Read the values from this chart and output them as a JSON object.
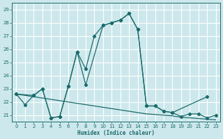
{
  "xlabel": "Humidex (Indice chaleur)",
  "bg_color": "#cde8ec",
  "grid_color": "#b0d8dc",
  "line_color": "#1a6b6b",
  "xlim": [
    -0.5,
    23.5
  ],
  "ylim": [
    20.5,
    29.5
  ],
  "xticks": [
    0,
    1,
    2,
    3,
    4,
    5,
    6,
    7,
    8,
    9,
    10,
    11,
    12,
    13,
    14,
    15,
    16,
    17,
    18,
    19,
    20,
    21,
    22,
    23
  ],
  "yticks": [
    21,
    22,
    23,
    24,
    25,
    26,
    27,
    28,
    29
  ],
  "curve1_x": [
    0,
    1,
    2,
    3,
    4,
    5,
    6,
    7,
    8,
    9,
    10,
    11,
    12,
    13,
    14,
    15,
    16,
    17,
    18,
    19,
    20,
    21,
    22,
    23
  ],
  "curve1_y": [
    22.6,
    21.8,
    22.5,
    23.0,
    20.8,
    20.9,
    23.2,
    25.8,
    24.5,
    27.0,
    27.8,
    28.0,
    28.2,
    28.7,
    27.5,
    21.7,
    21.7,
    21.3,
    21.2,
    20.9,
    21.1,
    21.1,
    20.8,
    21.0
  ],
  "curve2_x": [
    0,
    2,
    3,
    4,
    5,
    6,
    7,
    8,
    10,
    11,
    12,
    13,
    14,
    15,
    16,
    17,
    18,
    22
  ],
  "curve2_y": [
    22.6,
    22.5,
    23.0,
    20.8,
    20.9,
    23.2,
    25.8,
    23.3,
    27.8,
    28.0,
    28.2,
    28.7,
    27.5,
    21.7,
    21.7,
    21.3,
    21.2,
    22.4
  ],
  "curve3_x": [
    0,
    1,
    2,
    3,
    4,
    5,
    6,
    7,
    8,
    9,
    10,
    11,
    12,
    13,
    14,
    15,
    16,
    17,
    18,
    19,
    20,
    21,
    22,
    23
  ],
  "curve3_y": [
    22.6,
    22.5,
    22.4,
    22.3,
    22.2,
    22.1,
    22.0,
    21.9,
    21.8,
    21.7,
    21.6,
    21.5,
    21.4,
    21.3,
    21.2,
    21.1,
    21.05,
    21.0,
    20.95,
    20.85,
    20.8,
    20.75,
    20.7,
    20.65
  ]
}
